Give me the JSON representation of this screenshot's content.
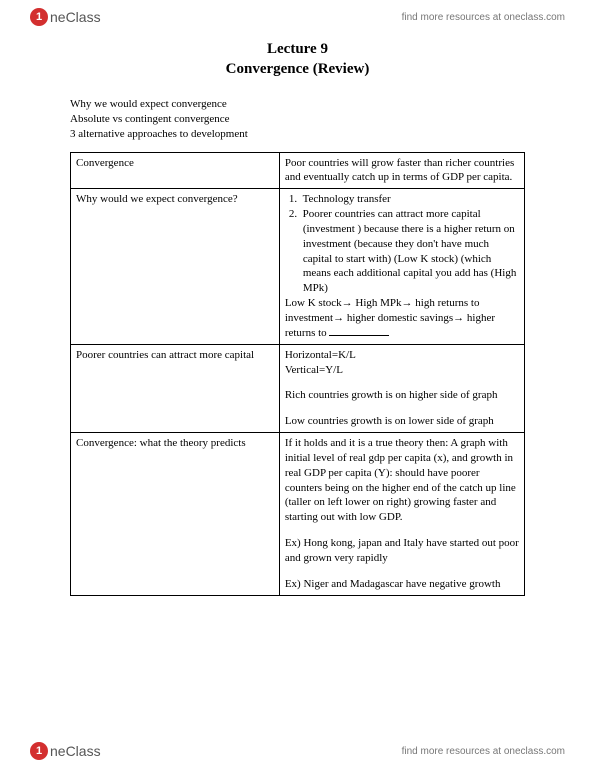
{
  "header": {
    "logo_text": "neClass",
    "resources": "find more resources at oneclass.com"
  },
  "footer": {
    "logo_text": "neClass",
    "resources": "find more resources at oneclass.com"
  },
  "title": {
    "line1": "Lecture 9",
    "line2": "Convergence (Review)"
  },
  "intro": {
    "l1": "Why we would expect convergence",
    "l2": "Absolute vs contingent convergence",
    "l3": "3 alternative approaches to development"
  },
  "rows": [
    {
      "left": "Convergence",
      "right": "Poor countries will grow faster than richer countries and eventually catch up in terms of GDP per capita."
    },
    {
      "left": "Why would we expect convergence?",
      "right_list": [
        "Technology transfer",
        "Poorer countries can attract more capital (investment ) because there is a higher return on investment (because they don't have much capital to start with) (Low K stock) (which means each additional capital you add has (High MPk)"
      ],
      "right_tail_pre": "Low K stock→ High MPk→ high returns to investment→ higher domestic savings→ higher returns to "
    },
    {
      "left": "Poorer countries can attract more capital",
      "right_lines": [
        "Horizontal=K/L",
        "Vertical=Y/L"
      ],
      "right_p2": "Rich countries growth is on higher side of graph",
      "right_p3": "Low countries growth is on lower side of graph"
    },
    {
      "left": "Convergence: what the theory predicts",
      "right_p1": "If it holds and it is a true theory then: A graph with initial level of real gdp per capita (x), and growth in real GDP per capita (Y): should have poorer counters being on the higher end of the catch up line (taller on left lower on right) growing faster and starting out with low GDP.",
      "right_p2": "Ex) Hong kong, japan and Italy have started out poor and grown very rapidly",
      "right_p3": "Ex) Niger and Madagascar have negative growth"
    }
  ]
}
